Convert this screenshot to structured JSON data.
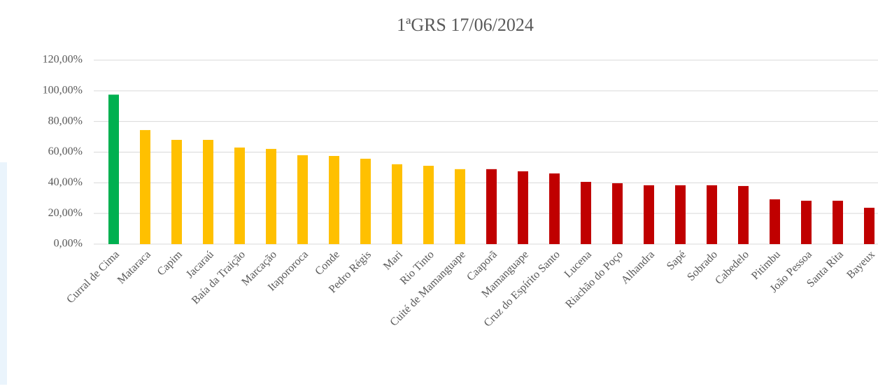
{
  "chart_data": {
    "type": "bar",
    "title": "1ªGRS 17/06/2024",
    "categories": [
      "Curral de Cima",
      "Mataraca",
      "Capim",
      "Jacaraú",
      "Baía da Traição",
      "Marcação",
      "Itapororoca",
      "Conde",
      "Pedro Régis",
      "Mari",
      "Rio Tinto",
      "Cuité de Mamanguape",
      "Caaporã",
      "Mamanguape",
      "Cruz do Espírito Santo",
      "Lucena",
      "Riachão do Poço",
      "Alhandra",
      "Sapé",
      "Sobrado",
      "Cabedelo",
      "Pitimbu",
      "João Pessoa",
      "Santa Rita",
      "Bayeux"
    ],
    "values": [
      97.5,
      74.4,
      68.0,
      68.0,
      63.0,
      62.1,
      58.0,
      57.5,
      55.7,
      52.1,
      51.1,
      48.9,
      48.9,
      47.5,
      46.1,
      40.6,
      39.7,
      38.4,
      38.4,
      38.4,
      37.9,
      29.2,
      28.3,
      28.3,
      23.7
    ],
    "colors": [
      "#00b050",
      "#ffc000",
      "#ffc000",
      "#ffc000",
      "#ffc000",
      "#ffc000",
      "#ffc000",
      "#ffc000",
      "#ffc000",
      "#ffc000",
      "#ffc000",
      "#ffc000",
      "#c00000",
      "#c00000",
      "#c00000",
      "#c00000",
      "#c00000",
      "#c00000",
      "#c00000",
      "#c00000",
      "#c00000",
      "#c00000",
      "#c00000",
      "#c00000",
      "#c00000"
    ],
    "ylim": [
      0,
      120
    ],
    "yticks": [
      {
        "value": 0,
        "label": "0,00%"
      },
      {
        "value": 20,
        "label": "20,00%"
      },
      {
        "value": 40,
        "label": "40,00%"
      },
      {
        "value": 60,
        "label": "60,00%"
      },
      {
        "value": 80,
        "label": "80,00%"
      },
      {
        "value": 100,
        "label": "100,00%"
      },
      {
        "value": 120,
        "label": "120,00%"
      }
    ],
    "grid": true
  }
}
